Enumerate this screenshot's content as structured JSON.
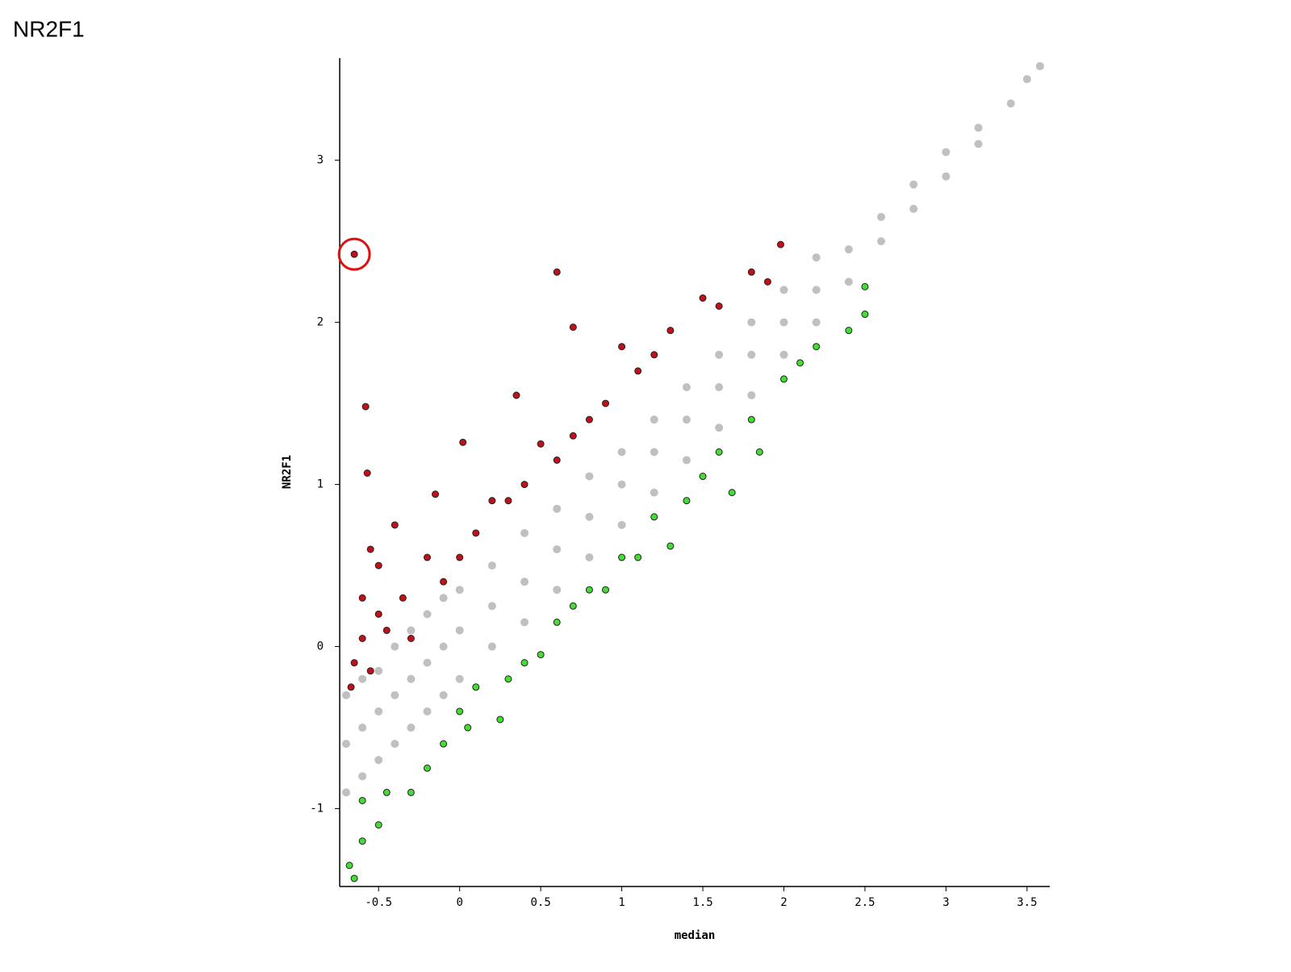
{
  "page_title": "NR2F1",
  "chart_data": {
    "type": "scatter",
    "xlabel": "median",
    "ylabel": "NR2F1",
    "xlim": [
      -0.74,
      3.64
    ],
    "ylim": [
      -1.48,
      3.63
    ],
    "xticks": [
      -0.5,
      0,
      0.5,
      1,
      1.5,
      2,
      2.5,
      3,
      3.5
    ],
    "yticks": [
      -1,
      0,
      1,
      2,
      3
    ],
    "series": [
      {
        "color": "#c0c0c0",
        "x": [
          -0.7,
          -0.7,
          -0.7,
          -0.6,
          -0.6,
          -0.6,
          -0.5,
          -0.5,
          -0.5,
          -0.4,
          -0.4,
          -0.4,
          -0.3,
          -0.3,
          -0.3,
          -0.2,
          -0.2,
          -0.2,
          -0.1,
          -0.1,
          -0.1,
          0,
          0,
          0,
          0.2,
          0.2,
          0.2,
          0.4,
          0.4,
          0.4,
          0.6,
          0.6,
          0.6,
          0.8,
          0.8,
          0.8,
          1,
          1,
          1,
          1.2,
          1.2,
          1.2,
          1.4,
          1.4,
          1.4,
          1.6,
          1.6,
          1.6,
          1.8,
          1.8,
          1.8,
          2,
          2,
          2,
          2.2,
          2.2,
          2.2,
          2.4,
          2.4,
          2.6,
          2.6,
          2.8,
          2.8,
          3,
          3,
          3.2,
          3.2,
          3.4,
          3.5,
          3.58
        ],
        "values": [
          -0.9,
          -0.6,
          -0.3,
          -0.8,
          -0.5,
          -0.2,
          -0.7,
          -0.4,
          -0.15,
          -0.6,
          -0.3,
          0,
          -0.5,
          -0.2,
          0.1,
          -0.4,
          -0.1,
          0.2,
          -0.3,
          0,
          0.3,
          -0.2,
          0.1,
          0.35,
          0,
          0.25,
          0.5,
          0.15,
          0.4,
          0.7,
          0.35,
          0.6,
          0.85,
          0.55,
          0.8,
          1.05,
          0.75,
          1,
          1.2,
          0.95,
          1.2,
          1.4,
          1.15,
          1.4,
          1.6,
          1.35,
          1.6,
          1.8,
          1.55,
          1.8,
          2,
          1.8,
          2,
          2.2,
          2,
          2.2,
          2.4,
          2.25,
          2.45,
          2.5,
          2.65,
          2.7,
          2.85,
          2.9,
          3.05,
          3.1,
          3.2,
          3.35,
          3.5,
          3.58
        ]
      },
      {
        "color": "#c0111b",
        "x": [
          -0.65,
          -0.67,
          -0.65,
          -0.6,
          -0.6,
          -0.58,
          -0.57,
          -0.55,
          -0.55,
          -0.5,
          -0.5,
          -0.45,
          -0.4,
          -0.35,
          -0.3,
          -0.2,
          -0.15,
          -0.1,
          0,
          0.02,
          0.1,
          0.2,
          0.3,
          0.35,
          0.4,
          0.5,
          0.6,
          0.6,
          0.7,
          0.7,
          0.8,
          0.9,
          1.0,
          1.1,
          1.2,
          1.3,
          1.5,
          1.6,
          1.8,
          1.9,
          1.98
        ],
        "values": [
          2.42,
          -0.25,
          -0.1,
          0.05,
          0.3,
          1.48,
          1.07,
          0.6,
          -0.15,
          0.2,
          0.5,
          0.1,
          0.75,
          0.3,
          0.05,
          0.55,
          0.94,
          0.4,
          0.55,
          1.26,
          0.7,
          0.9,
          0.9,
          1.55,
          1.0,
          1.25,
          2.31,
          1.15,
          1.97,
          1.3,
          1.4,
          1.5,
          1.85,
          1.7,
          1.8,
          1.95,
          2.15,
          2.1,
          2.31,
          2.25,
          2.48
        ]
      },
      {
        "color": "#44dd33",
        "x": [
          -0.68,
          -0.65,
          -0.6,
          -0.6,
          -0.5,
          -0.45,
          -0.3,
          -0.2,
          -0.1,
          0,
          0.05,
          0.1,
          0.25,
          0.3,
          0.4,
          0.5,
          0.6,
          0.7,
          0.8,
          0.9,
          1.0,
          1.1,
          1.2,
          1.3,
          1.4,
          1.5,
          1.6,
          1.68,
          1.8,
          1.85,
          2.0,
          2.1,
          2.2,
          2.4,
          2.5,
          2.5
        ],
        "values": [
          -1.35,
          -1.43,
          -1.2,
          -0.95,
          -1.1,
          -0.9,
          -0.9,
          -0.75,
          -0.6,
          -0.4,
          -0.5,
          -0.25,
          -0.45,
          -0.2,
          -0.1,
          -0.05,
          0.15,
          0.25,
          0.35,
          0.35,
          0.55,
          0.55,
          0.8,
          0.62,
          0.9,
          1.05,
          1.2,
          0.95,
          1.4,
          1.2,
          1.65,
          1.75,
          1.85,
          1.95,
          2.05,
          2.22
        ]
      }
    ]
  }
}
